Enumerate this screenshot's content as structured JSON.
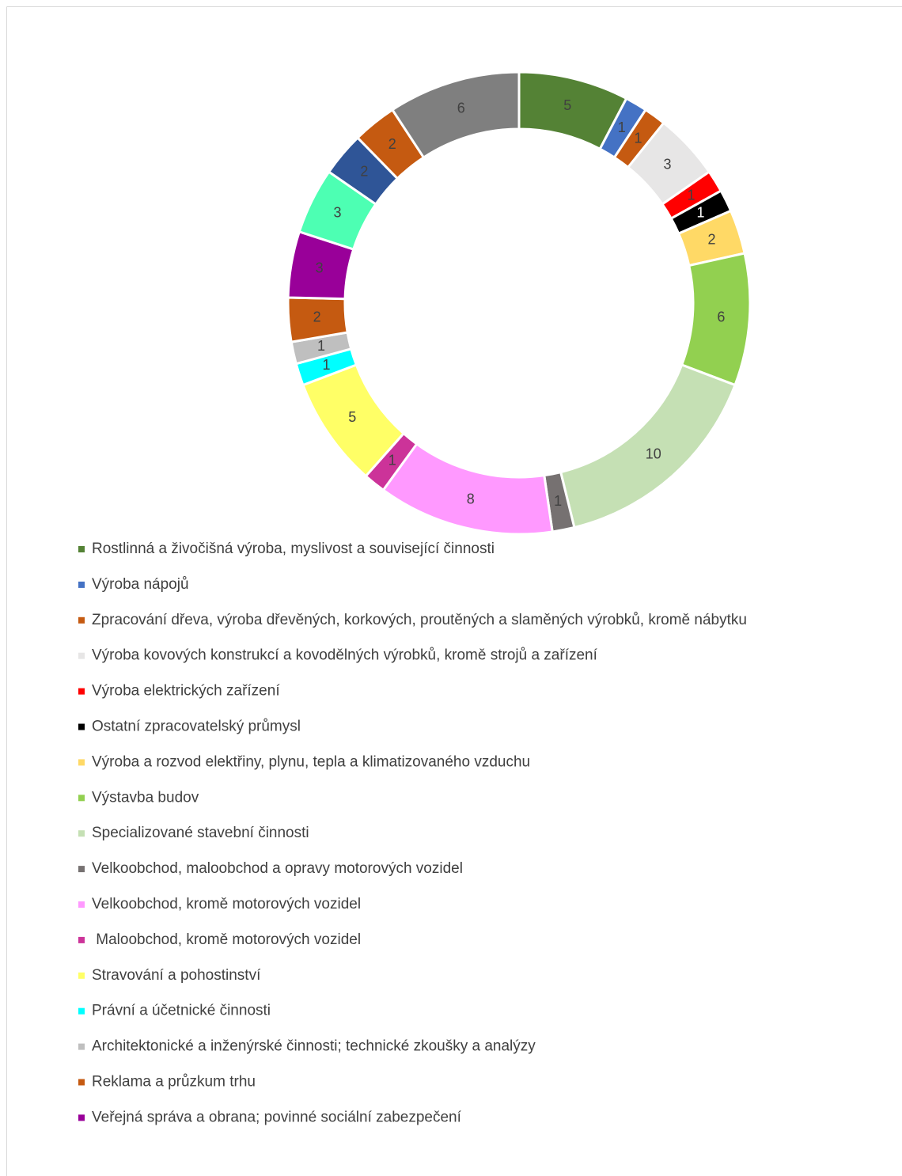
{
  "chart_data": {
    "type": "donut",
    "categories": [
      "Rostlinná a živočišná výroba, myslivost a související činnosti",
      "Výroba nápojů",
      "Zpracování dřeva, výroba dřevěných, korkových, proutěných a slaměných výrobků, kromě nábytku",
      "Výroba kovových konstrukcí a kovodělných výrobků, kromě strojů a zařízení",
      "Výroba elektrických zařízení",
      "Ostatní zpracovatelský průmysl",
      "Výroba a rozvod elektřiny, plynu, tepla a klimatizovaného vzduchu",
      "Výstavba budov",
      "Specializované stavební činnosti",
      "Velkoobchod, maloobchod a opravy motorových vozidel",
      "Velkoobchod, kromě motorových vozidel",
      " Maloobchod, kromě motorových vozidel",
      "Stravování a pohostinství",
      "Právní a účetnické činnosti",
      "Architektonické a inženýrské činnosti; technické zkoušky a analýzy",
      "Reklama a průzkum trhu",
      "Veřejná správa a obrana; povinné sociální zabezpečení",
      null,
      null,
      null,
      null
    ],
    "values": [
      5,
      1,
      1,
      3,
      1,
      1,
      2,
      6,
      10,
      1,
      8,
      1,
      5,
      1,
      1,
      2,
      3,
      3,
      2,
      2,
      6
    ],
    "colors": [
      "#548235",
      "#4472c4",
      "#c55a11",
      "#e7e6e6",
      "#ff0000",
      "#000000",
      "#ffd966",
      "#92d050",
      "#c5e0b4",
      "#767171",
      "#ff99ff",
      "#cc3399",
      "#ffff66",
      "#00ffff",
      "#bfbfbf",
      "#c55a11",
      "#990099",
      "#4dffb3",
      "#2f5597",
      "#c55a11",
      "#7f7f7f"
    ],
    "legend": "bottom"
  }
}
